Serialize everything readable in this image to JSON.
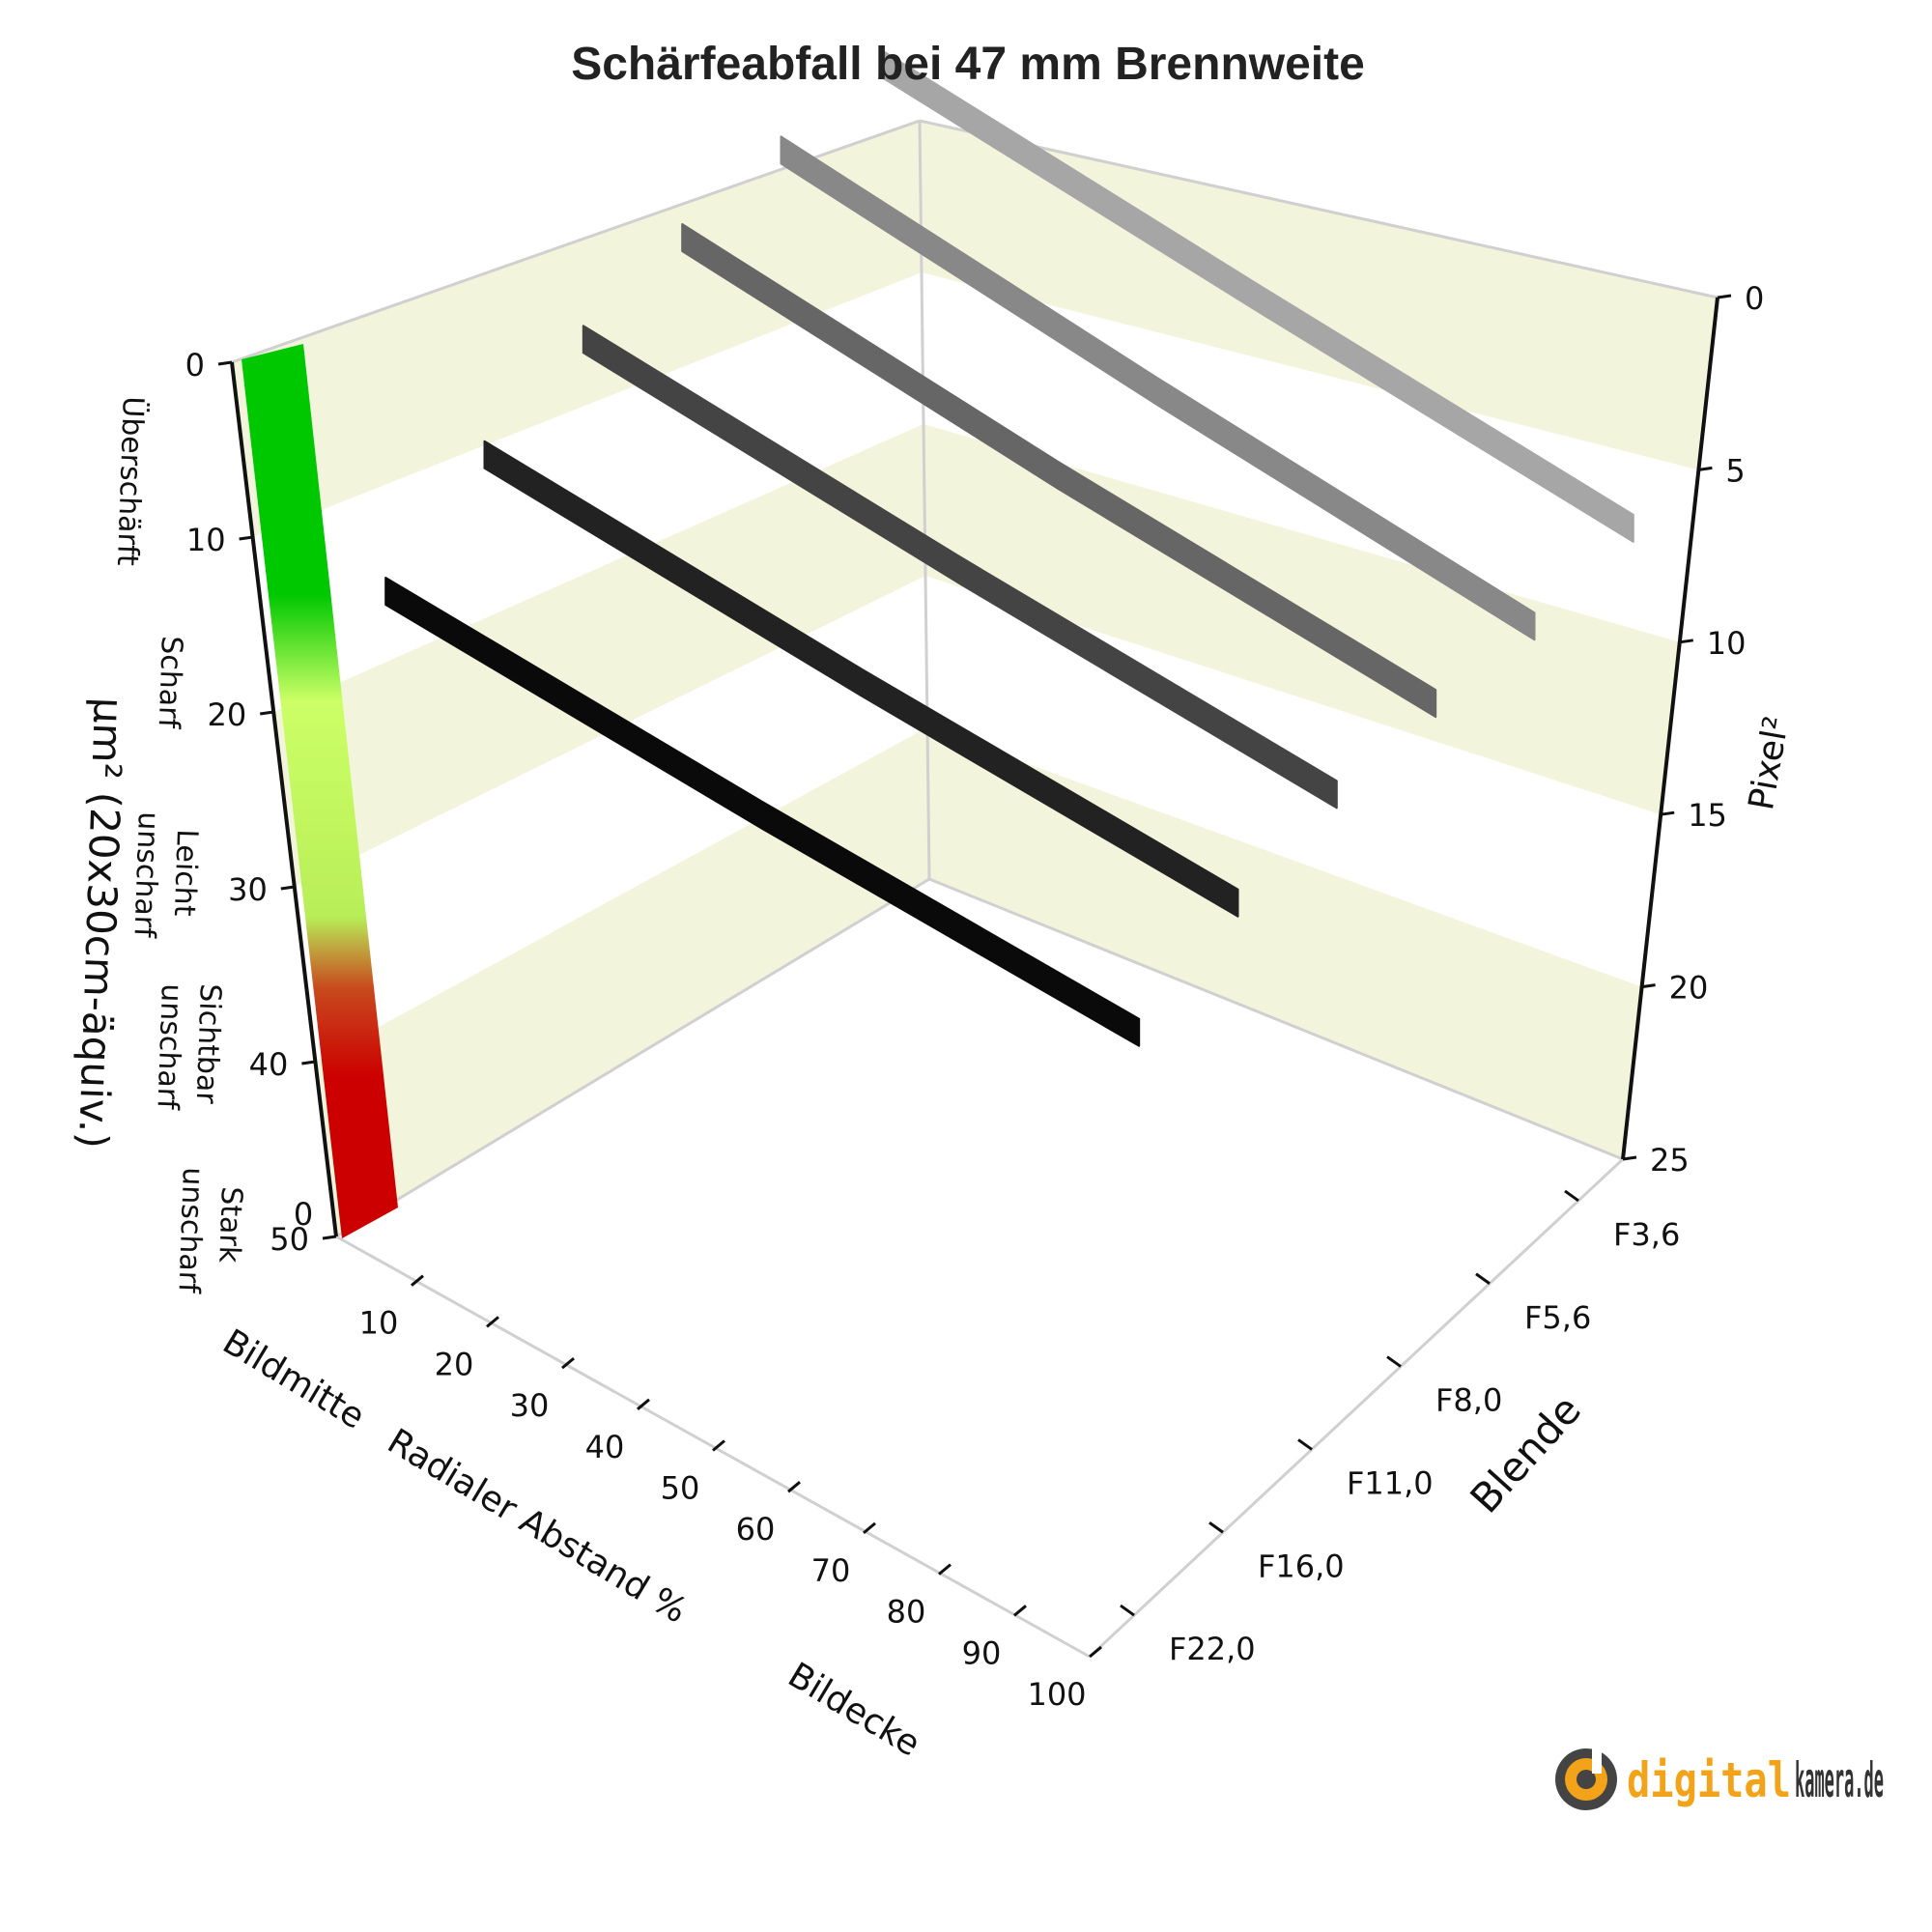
{
  "chart_data": {
    "type": "line",
    "title": "Schärfeabfall bei 47 mm Brennweite",
    "x_axis": {
      "label": "Radialer Abstand %",
      "range": [
        0,
        100
      ],
      "ticks": [
        "0",
        "10",
        "20",
        "30",
        "40",
        "50",
        "60",
        "70",
        "80",
        "90",
        "100"
      ],
      "annotations": [
        "Bildmitte",
        "Bildecke"
      ]
    },
    "z_axis": {
      "label": "Blende",
      "categories": [
        "F3,6",
        "F5,6",
        "F8,0",
        "F11,0",
        "F16,0",
        "F22,0"
      ]
    },
    "y_axis_left": {
      "label": "µm² (20x30cm-äquiv.)",
      "range": [
        0,
        50
      ],
      "ticks": [
        "0",
        "10",
        "20",
        "30",
        "40",
        "50"
      ],
      "quality_zones": [
        "Überschärft",
        "Scharf",
        "Leicht unscharf",
        "Sichtbar unscharf",
        "Stark unscharf"
      ],
      "zone_colors": [
        "#00c400",
        "#ccff66",
        "#c93a1e",
        "#cc0000"
      ]
    },
    "y_axis_right": {
      "label": "Pixel²",
      "range": [
        0,
        25
      ],
      "ticks": [
        "0",
        "5",
        "10",
        "15",
        "20",
        "25"
      ]
    },
    "series": [
      {
        "name": "F3,6",
        "color": "#a6a6a6",
        "x": [
          0,
          50,
          100
        ],
        "y": [
          0.8,
          1.5,
          2.1
        ]
      },
      {
        "name": "F5,6",
        "color": "#888888",
        "x": [
          0,
          50,
          100
        ],
        "y": [
          1.6,
          2.5,
          3.2
        ]
      },
      {
        "name": "F8,0",
        "color": "#666666",
        "x": [
          0,
          50,
          100
        ],
        "y": [
          2.4,
          3.2,
          3.7
        ]
      },
      {
        "name": "F11,0",
        "color": "#444444",
        "x": [
          0,
          50,
          100
        ],
        "y": [
          3.6,
          4.2,
          4.6
        ]
      },
      {
        "name": "F16,0",
        "color": "#222222",
        "x": [
          0,
          50,
          100
        ],
        "y": [
          5.2,
          5.7,
          6.0
        ]
      },
      {
        "name": "F22,0",
        "color": "#0a0a0a",
        "x": [
          0,
          50,
          100
        ],
        "y": [
          7.4,
          7.8,
          8.0
        ]
      }
    ],
    "grid": true
  },
  "branding": {
    "part1": "digital",
    "part2": "kamera.de"
  }
}
